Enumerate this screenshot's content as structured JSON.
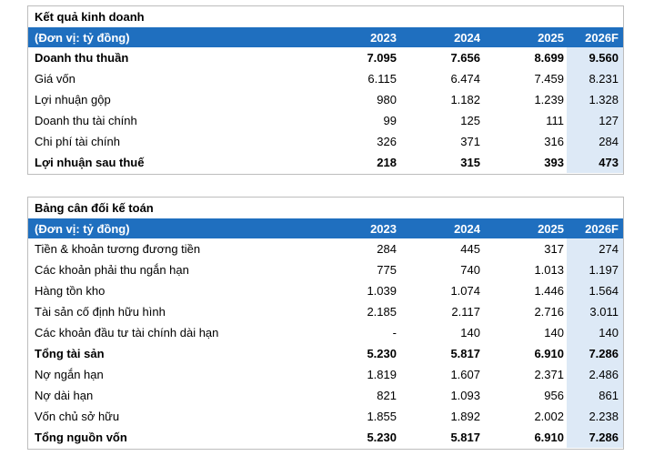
{
  "income": {
    "title": "Kết quả kinh doanh",
    "header": [
      "(Đơn vị: tỷ đồng)",
      "2023",
      "2024",
      "2025",
      "2026F"
    ],
    "rows": [
      {
        "label": "Doanh thu thuần",
        "v": [
          "7.095",
          "7.656",
          "8.699",
          "9.560"
        ],
        "bold": true
      },
      {
        "label": "Giá vốn",
        "v": [
          "6.115",
          "6.474",
          "7.459",
          "8.231"
        ],
        "bold": false
      },
      {
        "label": "Lợi nhuận gộp",
        "v": [
          "980",
          "1.182",
          "1.239",
          "1.328"
        ],
        "bold": false
      },
      {
        "label": "Doanh thu tài chính",
        "v": [
          "99",
          "125",
          "111",
          "127"
        ],
        "bold": false
      },
      {
        "label": "Chi phí tài chính",
        "v": [
          "326",
          "371",
          "316",
          "284"
        ],
        "bold": false
      },
      {
        "label": "Lợi nhuận sau thuế",
        "v": [
          "218",
          "315",
          "393",
          "473"
        ],
        "bold": true
      }
    ]
  },
  "balance": {
    "title": "Bảng cân đối kế toán",
    "header": [
      "(Đơn vị: tỷ đồng)",
      "2023",
      "2024",
      "2025",
      "2026F"
    ],
    "rows": [
      {
        "label": "Tiền & khoản tương đương tiền",
        "v": [
          "284",
          "445",
          "317",
          "274"
        ],
        "bold": false
      },
      {
        "label": "Các khoản phải thu ngắn hạn",
        "v": [
          "775",
          "740",
          "1.013",
          "1.197"
        ],
        "bold": false
      },
      {
        "label": "Hàng tồn kho",
        "v": [
          "1.039",
          "1.074",
          "1.446",
          "1.564"
        ],
        "bold": false
      },
      {
        "label": "Tài sản cố định hữu hình",
        "v": [
          "2.185",
          "2.117",
          "2.716",
          "3.011"
        ],
        "bold": false
      },
      {
        "label": "Các khoản đầu tư tài chính dài hạn",
        "v": [
          "-",
          "140",
          "140",
          "140"
        ],
        "bold": false
      },
      {
        "label": "Tổng tài sản",
        "v": [
          "5.230",
          "5.817",
          "6.910",
          "7.286"
        ],
        "bold": true
      },
      {
        "label": "Nợ ngắn hạn",
        "v": [
          "1.819",
          "1.607",
          "2.371",
          "2.486"
        ],
        "bold": false
      },
      {
        "label": "Nợ dài hạn",
        "v": [
          "821",
          "1.093",
          "956",
          "861"
        ],
        "bold": false
      },
      {
        "label": "Vốn chủ sở hữu",
        "v": [
          "1.855",
          "1.892",
          "2.002",
          "2.238"
        ],
        "bold": false
      },
      {
        "label": "Tổng nguồn vốn",
        "v": [
          "5.230",
          "5.817",
          "6.910",
          "7.286"
        ],
        "bold": true
      }
    ]
  }
}
